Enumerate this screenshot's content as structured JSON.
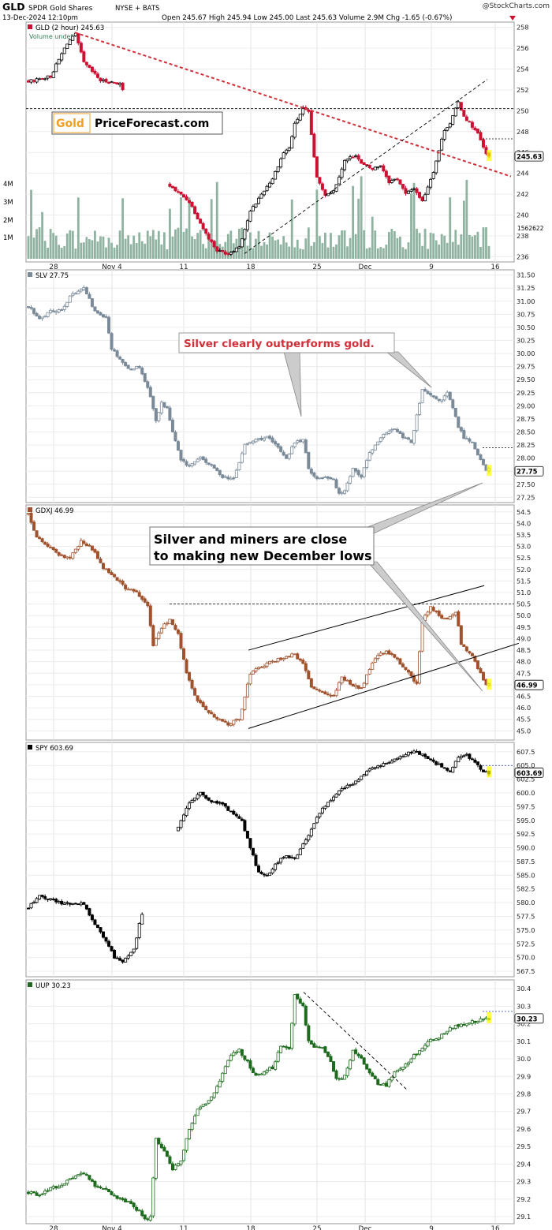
{
  "header": {
    "symbol": "GLD",
    "name": "SPDR Gold Shares",
    "exchange": "NYSE + BATS",
    "stamp": "@StockCharts.com",
    "datetime": "13-Dec-2024 12:10pm",
    "open_label": "Open",
    "open": "245.67",
    "high_label": "High",
    "high": "245.94",
    "low_label": "Low",
    "low": "245.00",
    "last_label": "Last",
    "last": "245.63",
    "volume_label": "Volume",
    "volume": "2.9M",
    "chg_label": "Chg",
    "chg": "-1.65 (-0.67%)"
  },
  "x_ticks": [
    "28",
    "Nov 4",
    "11",
    "18",
    "25",
    "Dec",
    "9",
    "16"
  ],
  "annotations": {
    "logo_left": "Gold",
    "logo_right": "PriceForecast.com",
    "silver_note": "Silver clearly outperforms gold.",
    "miners_note": "Silver and miners are close to making new December lows"
  },
  "colors": {
    "up": "#ffffff",
    "gld_down": "#cc1133",
    "slv": "#7a8a99",
    "gdxj": "#a0522d",
    "spy": "#000000",
    "uup": "#1e6b1e",
    "trend_red": "#d0303a",
    "volume": "#8fb3a0",
    "last_box": "#ffff00"
  },
  "chart_data": [
    {
      "type": "candlestick",
      "panel": "gld",
      "label": "GLD (2 hour) 245.63",
      "sublabel": "Volume undef",
      "last": "245.63",
      "ylim": [
        235.5,
        258.5
      ],
      "yticks": [
        236,
        238,
        240,
        242,
        244,
        246,
        248,
        250,
        252,
        254,
        256,
        258
      ],
      "volume_ticks": [
        "1M",
        "2M",
        "3M",
        "4M"
      ],
      "volume_last": "1562622",
      "anchors": [
        [
          0,
          252.8
        ],
        [
          8,
          253.3
        ],
        [
          14,
          256.5
        ],
        [
          17,
          257.3
        ],
        [
          20,
          254.6
        ],
        [
          26,
          252.9
        ],
        [
          33,
          252.6
        ],
        [
          37,
          249.8
        ],
        [
          40,
          245.8
        ],
        [
          44,
          246.2
        ],
        [
          46,
          245.5
        ],
        [
          50,
          243.0
        ],
        [
          58,
          241.3
        ],
        [
          64,
          238.2
        ],
        [
          68,
          236.6
        ],
        [
          72,
          236.3
        ],
        [
          76,
          237.0
        ],
        [
          80,
          240.3
        ],
        [
          84,
          242.0
        ],
        [
          88,
          243.5
        ],
        [
          92,
          246.0
        ],
        [
          94,
          246.4
        ],
        [
          96,
          248.7
        ],
        [
          99,
          250.2
        ],
        [
          101,
          249.8
        ],
        [
          104,
          243.5
        ],
        [
          107,
          242.0
        ],
        [
          110,
          242.3
        ],
        [
          114,
          245.2
        ],
        [
          118,
          245.8
        ],
        [
          120,
          244.9
        ],
        [
          124,
          244.4
        ],
        [
          127,
          244.8
        ],
        [
          130,
          243.2
        ],
        [
          133,
          243.5
        ],
        [
          136,
          242.0
        ],
        [
          139,
          242.6
        ],
        [
          142,
          241.3
        ],
        [
          146,
          244.2
        ],
        [
          150,
          248.2
        ],
        [
          152,
          248.8
        ],
        [
          155,
          250.8
        ],
        [
          157,
          249.5
        ],
        [
          160,
          248.5
        ],
        [
          162,
          247.8
        ],
        [
          165,
          245.8
        ],
        [
          166,
          245.6
        ]
      ],
      "gaps": [
        [
          35,
          16
        ]
      ],
      "ref_lines": [
        250.2
      ],
      "dashed_last": 247.3
    },
    {
      "type": "candlestick",
      "panel": "slv",
      "label": "SLV 27.75",
      "last": "27.75",
      "ylim": [
        27.15,
        31.6
      ],
      "yticks": [
        27.25,
        27.5,
        27.75,
        28.0,
        28.25,
        28.5,
        28.75,
        29.0,
        29.25,
        29.5,
        29.75,
        30.0,
        30.25,
        30.5,
        30.75,
        31.0,
        31.25,
        31.5
      ],
      "anchors": [
        [
          0,
          30.9
        ],
        [
          4,
          30.65
        ],
        [
          8,
          30.8
        ],
        [
          12,
          30.85
        ],
        [
          16,
          31.15
        ],
        [
          20,
          31.25
        ],
        [
          24,
          30.8
        ],
        [
          28,
          30.7
        ],
        [
          30,
          30.1
        ],
        [
          33,
          29.9
        ],
        [
          36,
          29.7
        ],
        [
          40,
          29.75
        ],
        [
          44,
          29.2
        ],
        [
          46,
          28.7
        ],
        [
          48,
          29.05
        ],
        [
          50,
          28.95
        ],
        [
          52,
          28.5
        ],
        [
          55,
          27.95
        ],
        [
          58,
          27.85
        ],
        [
          62,
          28.0
        ],
        [
          66,
          27.85
        ],
        [
          70,
          27.65
        ],
        [
          74,
          27.6
        ],
        [
          78,
          28.25
        ],
        [
          82,
          28.35
        ],
        [
          86,
          28.4
        ],
        [
          90,
          28.2
        ],
        [
          93,
          28.0
        ],
        [
          96,
          28.3
        ],
        [
          99,
          28.35
        ],
        [
          101,
          27.8
        ],
        [
          104,
          27.6
        ],
        [
          107,
          27.65
        ],
        [
          110,
          27.6
        ],
        [
          112,
          27.3
        ],
        [
          114,
          27.4
        ],
        [
          117,
          27.8
        ],
        [
          120,
          27.65
        ],
        [
          123,
          28.1
        ],
        [
          126,
          28.3
        ],
        [
          129,
          28.5
        ],
        [
          132,
          28.55
        ],
        [
          135,
          28.4
        ],
        [
          138,
          28.3
        ],
        [
          142,
          29.3
        ],
        [
          146,
          29.15
        ],
        [
          149,
          29.1
        ],
        [
          151,
          29.25
        ],
        [
          153,
          28.95
        ],
        [
          155,
          28.6
        ],
        [
          157,
          28.4
        ],
        [
          160,
          28.3
        ],
        [
          165,
          27.75
        ],
        [
          166,
          27.8
        ]
      ],
      "gaps": [],
      "dashed_last": 28.2
    },
    {
      "type": "candlestick",
      "panel": "gdxj",
      "label": "GDXJ 46.99",
      "last": "46.99",
      "ylim": [
        44.6,
        54.8
      ],
      "yticks": [
        45.0,
        45.5,
        46.0,
        46.5,
        47.0,
        47.5,
        48.0,
        48.5,
        49.0,
        49.5,
        50.0,
        50.5,
        51.0,
        51.5,
        52.0,
        52.5,
        53.0,
        53.5,
        54.0,
        54.5
      ],
      "anchors": [
        [
          0,
          54.4
        ],
        [
          3,
          53.4
        ],
        [
          7,
          53.0
        ],
        [
          11,
          52.6
        ],
        [
          15,
          52.5
        ],
        [
          19,
          53.2
        ],
        [
          23,
          52.9
        ],
        [
          27,
          52.1
        ],
        [
          31,
          51.7
        ],
        [
          35,
          51.2
        ],
        [
          39,
          51.0
        ],
        [
          43,
          50.4
        ],
        [
          45,
          48.7
        ],
        [
          48,
          49.5
        ],
        [
          51,
          49.8
        ],
        [
          54,
          49.2
        ],
        [
          57,
          47.5
        ],
        [
          60,
          46.5
        ],
        [
          64,
          45.9
        ],
        [
          68,
          45.5
        ],
        [
          72,
          45.3
        ],
        [
          76,
          45.5
        ],
        [
          80,
          47.5
        ],
        [
          84,
          47.8
        ],
        [
          88,
          48.0
        ],
        [
          92,
          48.2
        ],
        [
          96,
          48.3
        ],
        [
          99,
          47.9
        ],
        [
          102,
          46.9
        ],
        [
          106,
          46.7
        ],
        [
          110,
          46.5
        ],
        [
          113,
          47.3
        ],
        [
          117,
          47.0
        ],
        [
          120,
          46.8
        ],
        [
          123,
          47.7
        ],
        [
          126,
          48.3
        ],
        [
          129,
          48.4
        ],
        [
          132,
          48.2
        ],
        [
          135,
          47.8
        ],
        [
          138,
          47.4
        ],
        [
          140,
          47.0
        ],
        [
          142,
          49.8
        ],
        [
          145,
          50.4
        ],
        [
          148,
          50.0
        ],
        [
          151,
          49.8
        ],
        [
          154,
          50.2
        ],
        [
          156,
          48.8
        ],
        [
          158,
          48.5
        ],
        [
          160,
          48.3
        ],
        [
          162,
          47.7
        ],
        [
          165,
          46.99
        ],
        [
          166,
          47.0
        ]
      ],
      "gaps": [],
      "ref_lines": [
        50.5
      ]
    },
    {
      "type": "candlestick",
      "panel": "spy",
      "label": "SPY 603.69",
      "last": "603.69",
      "ylim": [
        566.5,
        609.2
      ],
      "yticks": [
        567.5,
        570.0,
        572.5,
        575.0,
        577.5,
        580.0,
        582.5,
        585.0,
        587.5,
        590.0,
        592.5,
        595.0,
        597.5,
        600.0,
        602.5,
        605.0,
        607.5
      ],
      "anchors": [
        [
          0,
          579.0
        ],
        [
          4,
          581.5
        ],
        [
          8,
          580.5
        ],
        [
          12,
          580.0
        ],
        [
          16,
          579.6
        ],
        [
          20,
          579.8
        ],
        [
          24,
          576.0
        ],
        [
          28,
          573.0
        ],
        [
          31,
          570.0
        ],
        [
          34,
          569.2
        ],
        [
          36,
          570.5
        ],
        [
          38,
          571.4
        ],
        [
          40,
          576.0
        ],
        [
          44,
          582.5
        ],
        [
          47,
          587.0
        ],
        [
          50,
          591.0
        ],
        [
          54,
          594.0
        ],
        [
          58,
          598.0
        ],
        [
          62,
          600.0
        ],
        [
          66,
          598.3
        ],
        [
          70,
          597.8
        ],
        [
          74,
          596.2
        ],
        [
          77,
          595.0
        ],
        [
          80,
          590.0
        ],
        [
          83,
          585.5
        ],
        [
          86,
          585.0
        ],
        [
          90,
          587.5
        ],
        [
          93,
          588.5
        ],
        [
          96,
          588.0
        ],
        [
          99,
          590.5
        ],
        [
          103,
          594.5
        ],
        [
          106,
          597.0
        ],
        [
          110,
          599.5
        ],
        [
          114,
          601.0
        ],
        [
          118,
          602.0
        ],
        [
          122,
          604.0
        ],
        [
          126,
          604.8
        ],
        [
          130,
          605.5
        ],
        [
          134,
          606.7
        ],
        [
          138,
          607.5
        ],
        [
          142,
          607.0
        ],
        [
          146,
          605.5
        ],
        [
          150,
          604.7
        ],
        [
          152,
          604.0
        ],
        [
          155,
          606.4
        ],
        [
          158,
          607.0
        ],
        [
          161,
          605.5
        ],
        [
          164,
          604.0
        ],
        [
          166,
          603.69
        ]
      ],
      "gaps": [
        [
          42,
          12
        ]
      ],
      "dashed_last": 605.0
    },
    {
      "type": "candlestick",
      "panel": "uup",
      "label": "UUP 30.23",
      "last": "30.23",
      "ylim": [
        29.06,
        30.45
      ],
      "yticks": [
        29.1,
        29.2,
        29.3,
        29.4,
        29.5,
        29.6,
        29.7,
        29.8,
        29.9,
        30.0,
        30.1,
        30.2,
        30.3,
        30.4
      ],
      "anchors": [
        [
          0,
          29.24
        ],
        [
          4,
          29.22
        ],
        [
          8,
          29.26
        ],
        [
          12,
          29.28
        ],
        [
          16,
          29.32
        ],
        [
          20,
          29.35
        ],
        [
          24,
          29.28
        ],
        [
          28,
          29.25
        ],
        [
          32,
          29.21
        ],
        [
          36,
          29.18
        ],
        [
          40,
          29.13
        ],
        [
          42,
          29.08
        ],
        [
          44,
          29.1
        ],
        [
          46,
          29.55
        ],
        [
          49,
          29.47
        ],
        [
          52,
          29.37
        ],
        [
          55,
          29.42
        ],
        [
          58,
          29.6
        ],
        [
          61,
          29.72
        ],
        [
          64,
          29.75
        ],
        [
          67,
          29.8
        ],
        [
          70,
          29.92
        ],
        [
          73,
          30.02
        ],
        [
          76,
          30.05
        ],
        [
          79,
          29.98
        ],
        [
          82,
          29.9
        ],
        [
          85,
          29.93
        ],
        [
          88,
          29.95
        ],
        [
          91,
          30.07
        ],
        [
          94,
          30.05
        ],
        [
          96,
          30.36
        ],
        [
          99,
          30.3
        ],
        [
          101,
          30.1
        ],
        [
          103,
          30.07
        ],
        [
          106,
          30.06
        ],
        [
          109,
          29.98
        ],
        [
          111,
          29.88
        ],
        [
          114,
          29.9
        ],
        [
          117,
          30.05
        ],
        [
          120,
          30.0
        ],
        [
          123,
          29.92
        ],
        [
          126,
          29.86
        ],
        [
          129,
          29.85
        ],
        [
          132,
          29.92
        ],
        [
          135,
          29.95
        ],
        [
          138,
          30.0
        ],
        [
          141,
          30.05
        ],
        [
          144,
          30.1
        ],
        [
          148,
          30.12
        ],
        [
          152,
          30.17
        ],
        [
          156,
          30.2
        ],
        [
          160,
          30.21
        ],
        [
          166,
          30.23
        ]
      ],
      "gaps": [],
      "dashed_last": 30.27
    }
  ]
}
